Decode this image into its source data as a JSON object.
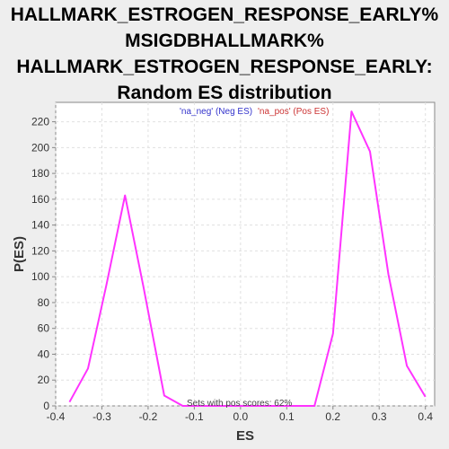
{
  "chart_data": {
    "type": "line",
    "title_lines": [
      "HALLMARK_ESTROGEN_RESPONSE_EARLY%",
      "MSIGDBHALLMARK%",
      "HALLMARK_ESTROGEN_RESPONSE_EARLY:",
      "Random ES distribution"
    ],
    "xlabel": "ES",
    "ylabel": "P(ES)",
    "xlim": [
      -0.4,
      0.42
    ],
    "ylim": [
      0,
      235
    ],
    "xticks": [
      "-0.4",
      "-0.3",
      "-0.2",
      "-0.1",
      "0.0",
      "0.1",
      "0.2",
      "0.3",
      "0.4"
    ],
    "xtick_values": [
      -0.4,
      -0.3,
      -0.2,
      -0.1,
      0.0,
      0.1,
      0.2,
      0.3,
      0.4
    ],
    "yticks": [
      "0",
      "20",
      "40",
      "60",
      "80",
      "100",
      "120",
      "140",
      "160",
      "180",
      "200",
      "220"
    ],
    "ytick_values": [
      0,
      20,
      40,
      60,
      80,
      100,
      120,
      140,
      160,
      180,
      200,
      220
    ],
    "grid": true,
    "legend": {
      "placement": "top-center",
      "entries": [
        {
          "text": "'na_neg' (Neg ES)",
          "color": "#3333cc"
        },
        {
          "text": "'na_pos' (Pos ES)",
          "color": "#cc3333"
        }
      ]
    },
    "annotation": "Sets with pos scores: 62%",
    "series": [
      {
        "color": "#ff33ff",
        "x": [
          -0.37,
          -0.33,
          -0.29,
          -0.25,
          -0.21,
          -0.165,
          -0.125,
          -0.085,
          -0.045,
          0.0,
          0.04,
          0.08,
          0.12,
          0.16,
          0.2,
          0.24,
          0.28,
          0.32,
          0.36,
          0.4
        ],
        "y": [
          3,
          29,
          94,
          163,
          92,
          8,
          0,
          0,
          0,
          0,
          0,
          0,
          0,
          0,
          56,
          228,
          197,
          102,
          31,
          7
        ]
      }
    ]
  },
  "colors": {
    "plot_background": "#ffffff",
    "page_background": "#eeeeee",
    "grid": "#e0e0e0",
    "axis": "#888888",
    "line": "#ff33ff"
  }
}
